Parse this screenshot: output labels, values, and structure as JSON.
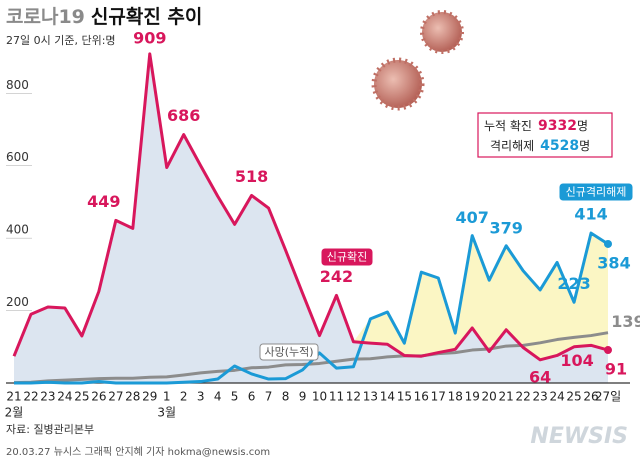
{
  "chart_data": {
    "type": "line",
    "title_parts": [
      "코로나19",
      "신규확진 추이"
    ],
    "subtitle": "27일 0시 기준, 단위:명",
    "categories": [
      "21",
      "22",
      "23",
      "24",
      "25",
      "26",
      "27",
      "28",
      "29",
      "1",
      "2",
      "3",
      "4",
      "5",
      "6",
      "7",
      "8",
      "9",
      "10",
      "11",
      "12",
      "13",
      "14",
      "15",
      "16",
      "17",
      "18",
      "19",
      "20",
      "21",
      "22",
      "23",
      "24",
      "25",
      "26",
      "27일"
    ],
    "months": [
      {
        "index": 0,
        "label": "2월"
      },
      {
        "index": 9,
        "label": "3월"
      }
    ],
    "ylim": [
      0,
      950
    ],
    "yticks": [
      200,
      400,
      600,
      800
    ],
    "series": [
      {
        "name": "신규확진",
        "color": "#d8175c",
        "values": [
          74,
          190,
          210,
          207,
          130,
          253,
          449,
          427,
          909,
          595,
          686,
          600,
          516,
          438,
          518,
          483,
          367,
          248,
          131,
          242,
          114,
          110,
          107,
          76,
          74,
          84,
          93,
          152,
          87,
          147,
          98,
          64,
          76,
          100,
          104,
          91
        ]
      },
      {
        "name": "신규격리해제",
        "color": "#1b9ad6",
        "values": [
          0,
          0,
          2,
          0,
          0,
          4,
          0,
          0,
          0,
          0,
          2,
          4,
          11,
          47,
          25,
          11,
          12,
          36,
          83,
          41,
          45,
          177,
          196,
          110,
          306,
          290,
          138,
          407,
          284,
          379,
          310,
          257,
          333,
          223,
          414,
          384
        ]
      },
      {
        "name": "사망(누적)",
        "color": "#8c8c8c",
        "values": [
          1,
          2,
          6,
          8,
          10,
          12,
          13,
          13,
          16,
          17,
          22,
          28,
          32,
          35,
          42,
          44,
          50,
          51,
          54,
          60,
          66,
          67,
          72,
          75,
          75,
          81,
          84,
          91,
          94,
          102,
          104,
          111,
          120,
          126,
          131,
          139
        ]
      }
    ],
    "summary": [
      {
        "label": "누적 확진",
        "value": 9332,
        "unit": "명"
      },
      {
        "label": "격리해제",
        "value": 4528,
        "unit": "명"
      }
    ],
    "source": "자료: 질병관리본부",
    "footer": "20.03.27 뉴시스 그래픽 안지혜 기자 hokma@newsis.com",
    "logo": "NEWSIS"
  }
}
